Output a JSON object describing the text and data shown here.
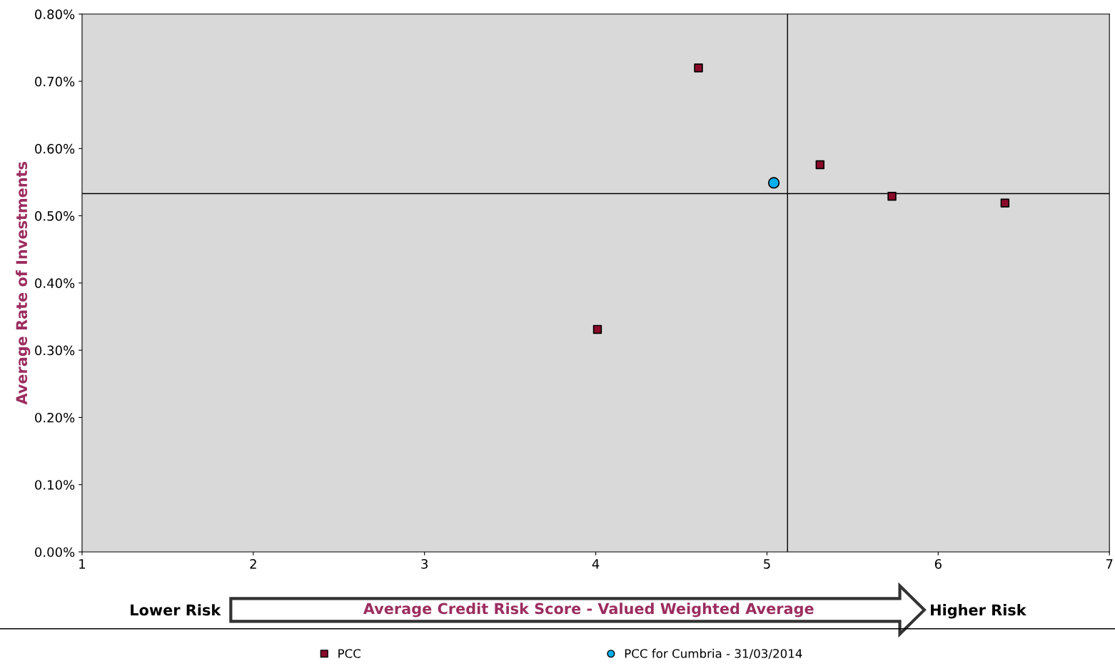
{
  "chart_data": {
    "type": "scatter",
    "xlabel": "Average Credit Risk Score - Valued Weighted Average",
    "ylabel": "Average Rate of Investments",
    "series": [
      {
        "name": "PCC",
        "color": "#8b0a2a",
        "marker": "square",
        "x": [
          4.6,
          5.31,
          5.73,
          6.39,
          4.01
        ],
        "values": [
          0.72,
          0.576,
          0.529,
          0.519,
          0.331
        ]
      },
      {
        "name": "PCC for Cumbria - 31/03/2014",
        "color": "#00b0f0",
        "marker": "circle",
        "x": [
          5.04
        ],
        "values": [
          0.549
        ]
      }
    ],
    "xlim": [
      1,
      7
    ],
    "xticks": [
      1,
      2,
      3,
      4,
      5,
      6,
      7
    ],
    "ylim": [
      0,
      0.8
    ],
    "yticks": [
      {
        "value": 0,
        "label": "0.00%"
      },
      {
        "value": 0.1,
        "label": "0.10%"
      },
      {
        "value": 0.2,
        "label": "0.20%"
      },
      {
        "value": 0.3,
        "label": "0.30%"
      },
      {
        "value": 0.4,
        "label": "0.40%"
      },
      {
        "value": 0.5,
        "label": "0.50%"
      },
      {
        "value": 0.6,
        "label": "0.60%"
      },
      {
        "value": 0.7,
        "label": "0.70%"
      },
      {
        "value": 0.8,
        "label": "0.80%"
      }
    ],
    "ref_lines": [
      {
        "axis": "x",
        "value": 5.12,
        "color": "#000000"
      },
      {
        "axis": "y",
        "value": 0.533,
        "color": "#000000"
      }
    ],
    "annotations": [
      "Lower Risk",
      "Higher Risk"
    ],
    "grid": false,
    "legend": "bottom"
  }
}
